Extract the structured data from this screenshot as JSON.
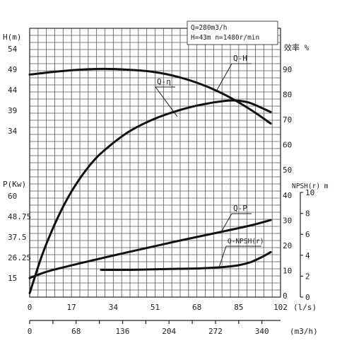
{
  "chart_data": {
    "type": "line",
    "info": [
      "Q=280m3/h",
      "H=43m  n=1480r/min"
    ],
    "x_axis_top": {
      "unit_label": "(l/s)",
      "ticks": [
        0,
        17,
        34,
        51,
        68,
        85,
        102
      ],
      "range": [
        0,
        102
      ]
    },
    "x_axis_bottom": {
      "unit_label": "(m3/h)",
      "ticks": [
        0,
        68,
        136,
        204,
        272,
        340
      ],
      "range": [
        0,
        367.2
      ]
    },
    "y_axes": {
      "head": {
        "label": "H(m)",
        "ticks": [
          "54",
          "49",
          "44",
          "39",
          "34"
        ]
      },
      "power": {
        "label": "P(Kw)",
        "ticks": [
          "60",
          "48.75",
          "37.5",
          "26.25",
          "15"
        ]
      },
      "efficiency": {
        "label": "效率 %",
        "ticks": [
          90,
          80,
          70,
          60,
          50,
          40,
          30,
          20,
          10,
          0
        ],
        "range": [
          0,
          90
        ]
      },
      "npsh": {
        "label": "NPSH(r) m",
        "ticks": [
          10,
          8,
          6,
          4,
          2,
          0
        ],
        "range": [
          0,
          10
        ]
      }
    },
    "series": [
      {
        "name": "Q-H",
        "unit": "m",
        "x": [
          0,
          10,
          20,
          30,
          40,
          50,
          60,
          70,
          80,
          90,
          98
        ],
        "y": [
          47.7,
          48.4,
          48.9,
          49.1,
          48.9,
          48.4,
          47.2,
          45.3,
          42.6,
          39.1,
          35.8
        ]
      },
      {
        "name": "Q-η",
        "unit": "%",
        "x": [
          0,
          5,
          10,
          15,
          20,
          25,
          30,
          40,
          50,
          60,
          70,
          80,
          85,
          90,
          98
        ],
        "y": [
          1,
          16,
          28,
          38,
          46,
          52.5,
          57.5,
          65,
          70,
          73.5,
          76,
          77.5,
          77.5,
          76.5,
          73
        ]
      },
      {
        "name": "Q-P",
        "unit": "kW",
        "x": [
          0,
          5,
          10,
          20,
          30,
          40,
          50,
          60,
          70,
          80,
          90,
          98
        ],
        "y": [
          15,
          17.6,
          19.6,
          22.9,
          26.1,
          29.2,
          32.2,
          35.2,
          38.1,
          40.9,
          43.9,
          46.8
        ]
      },
      {
        "name": "Q-NPSH(r)",
        "unit": "m",
        "x": [
          29,
          40,
          50,
          60,
          70,
          80,
          85,
          90,
          95,
          98
        ],
        "y": [
          2.6,
          2.6,
          2.65,
          2.7,
          2.75,
          2.9,
          3.05,
          3.35,
          3.9,
          4.3
        ]
      }
    ]
  }
}
